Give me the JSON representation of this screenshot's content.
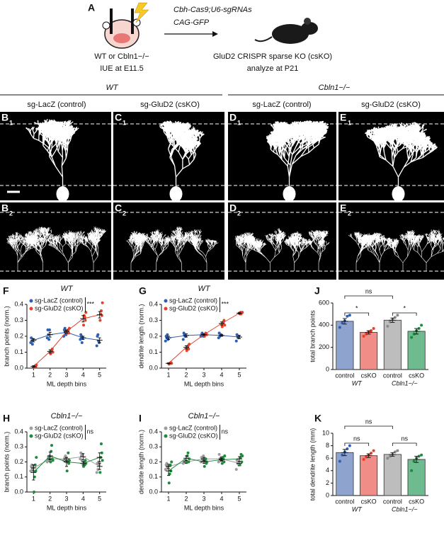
{
  "schematic": {
    "label": "A",
    "vector_line1": "Cbh-Cas9;U6-sgRNAs",
    "vector_line2": "CAG-GFP",
    "condition_line1": "WT or Cbln1−/−",
    "condition_line2": "IUE at E11.5",
    "outcome_line1": "GluD2 CRISPR sparse KO (csKO)",
    "outcome_line2": "analyze at P21"
  },
  "headers": {
    "group1": "WT",
    "group2": "Cbln1−/−",
    "columns": [
      "sg-LacZ (control)",
      "sg-GluD2 (csKO)",
      "sg-LacZ (control)",
      "sg-GluD2 (csKO)"
    ]
  },
  "image_panels": [
    {
      "letter": "B",
      "sub": "1"
    },
    {
      "letter": "C",
      "sub": "1"
    },
    {
      "letter": "D",
      "sub": "1"
    },
    {
      "letter": "E",
      "sub": "1"
    },
    {
      "letter": "B",
      "sub": "2"
    },
    {
      "letter": "C",
      "sub": "2"
    },
    {
      "letter": "D",
      "sub": "2"
    },
    {
      "letter": "E",
      "sub": "2"
    }
  ],
  "chart_data": [
    {
      "type": "line",
      "label": "F",
      "title": "WT",
      "xlabel": "ML depth bins",
      "ylabel": "branch points (norm.)",
      "significance": "***",
      "x": [
        1,
        2,
        3,
        4,
        5
      ],
      "xlim": [
        0.6,
        5.4
      ],
      "xticks": [
        1,
        2,
        3,
        4,
        5
      ],
      "ylim": [
        0,
        0.4
      ],
      "yticks": [
        {
          "value": 0,
          "label": "0.0"
        },
        0.1,
        0.2,
        0.3,
        0.4
      ],
      "series": [
        {
          "name": "sg-LacZ (control)",
          "color": "#2f5fb3",
          "values": [
            0.175,
            0.21,
            0.225,
            0.19,
            0.175
          ],
          "errors": [
            0.01,
            0.015,
            0.01,
            0.01,
            0.015
          ],
          "points": [
            [
              0.16,
              0.19,
              0.17,
              0.15,
              0.18
            ],
            [
              0.19,
              0.24,
              0.21,
              0.18,
              0.24
            ],
            [
              0.2,
              0.24,
              0.25,
              0.22,
              0.21
            ],
            [
              0.18,
              0.21,
              0.2,
              0.16,
              0.19
            ],
            [
              0.14,
              0.2,
              0.21,
              0.17,
              0.16
            ]
          ]
        },
        {
          "name": "sg-GluD2 (csKO)",
          "color": "#e2422b",
          "values": [
            0.01,
            0.105,
            0.23,
            0.31,
            0.335
          ],
          "errors": [
            0.005,
            0.01,
            0.01,
            0.02,
            0.02
          ],
          "points": [
            [
              0.005,
              0.01,
              0.015,
              0.01,
              0.02
            ],
            [
              0.09,
              0.1,
              0.11,
              0.12,
              0.1
            ],
            [
              0.22,
              0.23,
              0.24,
              0.22,
              0.25
            ],
            [
              0.27,
              0.33,
              0.32,
              0.3,
              0.35
            ],
            [
              0.3,
              0.34,
              0.36,
              0.33,
              0.41
            ]
          ]
        }
      ]
    },
    {
      "type": "line",
      "label": "G",
      "title": "WT",
      "xlabel": "ML depth bins",
      "ylabel": "dendrite length (norm.)",
      "significance": "***",
      "x": [
        1,
        2,
        3,
        4,
        5
      ],
      "xlim": [
        0.6,
        5.4
      ],
      "xticks": [
        1,
        2,
        3,
        4,
        5
      ],
      "ylim": [
        0,
        0.4
      ],
      "yticks": [
        {
          "value": 0,
          "label": "0.0"
        },
        0.1,
        0.2,
        0.3,
        0.4
      ],
      "series": [
        {
          "name": "sg-LacZ (control)",
          "color": "#2f5fb3",
          "values": [
            0.19,
            0.205,
            0.21,
            0.205,
            0.195
          ],
          "errors": [
            0.01,
            0.01,
            0.005,
            0.005,
            0.01
          ],
          "points": [
            [
              0.17,
              0.2,
              0.19,
              0.21,
              0.18
            ],
            [
              0.18,
              0.22,
              0.21,
              0.2,
              0.2
            ],
            [
              0.2,
              0.21,
              0.22,
              0.21,
              0.2
            ],
            [
              0.19,
              0.22,
              0.2,
              0.21,
              0.21
            ],
            [
              0.17,
              0.21,
              0.2,
              0.19,
              0.2
            ]
          ]
        },
        {
          "name": "sg-GluD2 (csKO)",
          "color": "#e2422b",
          "values": [
            0.03,
            0.13,
            0.21,
            0.28,
            0.345
          ],
          "errors": [
            0.003,
            0.01,
            0.005,
            0.01,
            0.005
          ],
          "points": [
            [
              0.025,
              0.03,
              0.03,
              0.035,
              0.03
            ],
            [
              0.11,
              0.13,
              0.14,
              0.12,
              0.15
            ],
            [
              0.2,
              0.21,
              0.22,
              0.21,
              0.21
            ],
            [
              0.26,
              0.28,
              0.29,
              0.3,
              0.27
            ],
            [
              0.34,
              0.35,
              0.34,
              0.35,
              0.35
            ]
          ]
        }
      ]
    },
    {
      "type": "bar",
      "label": "J",
      "ylabel": "total branch points",
      "significance": [
        "ns",
        "*",
        "*"
      ],
      "categories": [
        "control",
        "csKO",
        "control",
        "csKO"
      ],
      "groups": [
        "WT",
        "Cbln1−/−"
      ],
      "ylim": [
        0,
        600
      ],
      "yticks": [
        0,
        200,
        400,
        600
      ],
      "values": [
        435,
        335,
        445,
        345
      ],
      "errors": [
        25,
        15,
        20,
        25
      ],
      "colors": [
        "#8fa3cf",
        "#f08d86",
        "#bdbdbd",
        "#6dbb8e"
      ],
      "point_colors": [
        "#2f5fb3",
        "#e2422b",
        "#8a8a8a",
        "#1e8a3c"
      ],
      "points": [
        [
          380,
          420,
          440,
          480,
          490
        ],
        [
          300,
          320,
          340,
          350,
          370
        ],
        [
          390,
          430,
          450,
          470,
          490
        ],
        [
          290,
          320,
          350,
          370,
          400
        ]
      ]
    },
    {
      "type": "line",
      "label": "H",
      "title": "Cbln1−/−",
      "xlabel": "ML depth bins",
      "ylabel": "branch points (norm.)",
      "significance": "ns",
      "x": [
        1,
        2,
        3,
        4,
        5
      ],
      "xlim": [
        0.6,
        5.4
      ],
      "xticks": [
        1,
        2,
        3,
        4,
        5
      ],
      "ylim": [
        0,
        0.4
      ],
      "yticks": [
        {
          "value": 0,
          "label": "0.0"
        },
        0.1,
        0.2,
        0.3,
        0.4
      ],
      "series": [
        {
          "name": "sg-LacZ (control)",
          "color": "#9e9e9e",
          "values": [
            0.16,
            0.22,
            0.22,
            0.235,
            0.17
          ],
          "errors": [
            0.02,
            0.015,
            0.01,
            0.02,
            0.02
          ],
          "points": [
            [
              0.14,
              0.17,
              0.18,
              0.15,
              0.16
            ],
            [
              0.2,
              0.21,
              0.23,
              0.22,
              0.24
            ],
            [
              0.21,
              0.22,
              0.23,
              0.24,
              0.2
            ],
            [
              0.22,
              0.26,
              0.24,
              0.21,
              0.25
            ],
            [
              0.13,
              0.19,
              0.15,
              0.2,
              0.18
            ]
          ]
        },
        {
          "name": "sg-GluD2 (csKO)",
          "color": "#1e8a3c",
          "values": [
            0.13,
            0.24,
            0.2,
            0.19,
            0.23
          ],
          "errors": [
            0.05,
            0.025,
            0.03,
            0.01,
            0.03
          ],
          "points": [
            [
              0,
              0.1,
              0.18,
              0.14,
              0.23
            ],
            [
              0.2,
              0.27,
              0.31,
              0.22,
              0.21
            ],
            [
              0.14,
              0.2,
              0.26,
              0.19,
              0.21
            ],
            [
              0.17,
              0.2,
              0.18,
              0.21,
              0.19
            ],
            [
              0.13,
              0.23,
              0.32,
              0.26,
              0.21
            ]
          ]
        }
      ]
    },
    {
      "type": "line",
      "label": "I",
      "title": "Cbln1−/−",
      "xlabel": "ML depth bins",
      "ylabel": "dendrite length (norm.)",
      "significance": "ns",
      "x": [
        1,
        2,
        3,
        4,
        5
      ],
      "xlim": [
        0.6,
        5.4
      ],
      "xticks": [
        1,
        2,
        3,
        4,
        5
      ],
      "ylim": [
        0,
        0.4
      ],
      "yticks": [
        {
          "value": 0,
          "label": "0.0"
        },
        0.1,
        0.2,
        0.3,
        0.4
      ],
      "series": [
        {
          "name": "sg-LacZ (control)",
          "color": "#9e9e9e",
          "values": [
            0.17,
            0.2,
            0.22,
            0.22,
            0.19
          ],
          "errors": [
            0.015,
            0.01,
            0.01,
            0.01,
            0.015
          ],
          "points": [
            [
              0.15,
              0.18,
              0.19,
              0.16,
              0.17
            ],
            [
              0.19,
              0.2,
              0.21,
              0.2,
              0.2
            ],
            [
              0.2,
              0.23,
              0.22,
              0.21,
              0.24
            ],
            [
              0.2,
              0.25,
              0.22,
              0.21,
              0.23
            ],
            [
              0.15,
              0.21,
              0.19,
              0.2,
              0.18
            ]
          ]
        },
        {
          "name": "sg-GluD2 (csKO)",
          "color": "#1e8a3c",
          "values": [
            0.14,
            0.225,
            0.2,
            0.215,
            0.22
          ],
          "errors": [
            0.03,
            0.015,
            0.01,
            0.01,
            0.015
          ],
          "points": [
            [
              0.06,
              0.12,
              0.18,
              0.14,
              0.2
            ],
            [
              0.2,
              0.24,
              0.26,
              0.2,
              0.22
            ],
            [
              0.17,
              0.21,
              0.22,
              0.19,
              0.2
            ],
            [
              0.19,
              0.23,
              0.22,
              0.2,
              0.24
            ],
            [
              0.18,
              0.23,
              0.25,
              0.2,
              0.24
            ]
          ]
        }
      ]
    },
    {
      "type": "bar",
      "label": "K",
      "ylabel": "total dendrite length (mm)",
      "significance": [
        "ns",
        "ns",
        "ns"
      ],
      "categories": [
        "control",
        "csKO",
        "control",
        "csKO"
      ],
      "groups": [
        "WT",
        "Cbln1−/−"
      ],
      "ylim": [
        0,
        10
      ],
      "yticks": [
        0,
        2,
        4,
        6,
        8,
        10
      ],
      "values": [
        6.9,
        6.4,
        6.6,
        5.8
      ],
      "errors": [
        0.5,
        0.3,
        0.3,
        0.5
      ],
      "colors": [
        "#8fa3cf",
        "#f08d86",
        "#bdbdbd",
        "#6dbb8e"
      ],
      "point_colors": [
        "#2f5fb3",
        "#e2422b",
        "#8a8a8a",
        "#1e8a3c"
      ],
      "points": [
        [
          5.5,
          6.5,
          7,
          7.5,
          8
        ],
        [
          5.8,
          6.2,
          6.5,
          6.8,
          7.2
        ],
        [
          6,
          6.3,
          6.6,
          7,
          7.2
        ],
        [
          4,
          5.5,
          6,
          6.3,
          6.5
        ]
      ]
    }
  ]
}
